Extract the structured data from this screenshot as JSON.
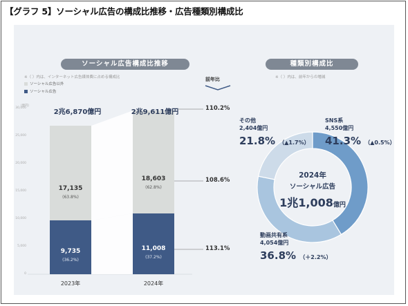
{
  "title": "【グラフ 5】ソーシャル広告の構成比推移・広告種類別構成比",
  "left_panel": {
    "title": "ソーシャル広告構成比推移",
    "note": "※（ ）内は、インターネット広告媒体費に占める構成比",
    "legend_other": "ソーシャル広告以外",
    "legend_social": "ソーシャル広告",
    "unit": "（億円）",
    "yoy_header": "前年比",
    "colors": {
      "social": "#3f5a86",
      "other": "#d9dcda"
    }
  },
  "right_panel": {
    "title": "種類別構成比",
    "note": "※（ ）内は、前年からの増減",
    "center_line1": "2024年",
    "center_line2": "ソーシャル広告",
    "center_value": "1兆1,008",
    "center_unit": "億円",
    "segments": [
      {
        "name": "SNS系",
        "amount": "4,550億円",
        "pct": "41.3%",
        "change": "（▲0.5%）"
      },
      {
        "name": "動画共有系",
        "amount": "4,054億円",
        "pct": "36.8%",
        "change": "（＋2.2%）"
      },
      {
        "name": "その他",
        "amount": "2,404億円",
        "pct": "21.8%",
        "change": "（▲1.7%）"
      }
    ],
    "colors": [
      "#6f9cc9",
      "#a9c5df",
      "#cddbe9"
    ]
  },
  "chart_data": [
    {
      "type": "bar",
      "stacked": true,
      "categories": [
        "2023年",
        "2024年"
      ],
      "ylim": [
        0,
        30000
      ],
      "yticks": [
        0,
        5000,
        10000,
        15000,
        20000,
        25000,
        30000
      ],
      "ytick_labels": [
        "0",
        "5,000",
        "10,000",
        "15,000",
        "20,000",
        "25,000",
        "30,000"
      ],
      "totals": [
        "2兆6,870億円",
        "2兆9,611億円"
      ],
      "series": [
        {
          "name": "ソーシャル広告",
          "values": [
            9735,
            11008
          ],
          "labels": [
            "9,735",
            "11,008"
          ],
          "shares": [
            "(36.2%)",
            "(37.2%)"
          ]
        },
        {
          "name": "ソーシャル広告以外",
          "values": [
            17135,
            18603
          ],
          "labels": [
            "17,135",
            "18,603"
          ],
          "shares": [
            "(63.8%)",
            "(62.8%)"
          ]
        }
      ],
      "yoy": {
        "total": "110.2%",
        "other": "108.6%",
        "social": "113.1%"
      }
    },
    {
      "type": "pie",
      "donut": true,
      "labels": [
        "SNS系",
        "動画共有系",
        "その他"
      ],
      "values": [
        41.3,
        36.8,
        21.8
      ]
    }
  ]
}
